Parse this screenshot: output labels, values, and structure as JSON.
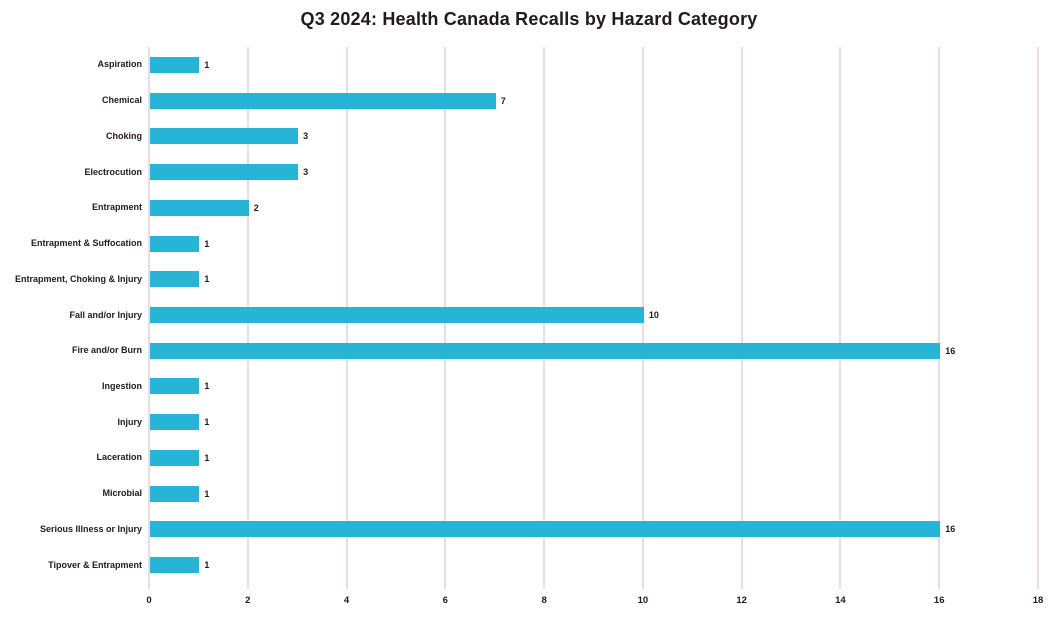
{
  "chart_data": {
    "type": "bar",
    "orientation": "horizontal",
    "title": "Q3 2024: Health Canada Recalls by Hazard Category",
    "categories": [
      "Aspiration",
      "Chemical",
      "Choking",
      "Electrocution",
      "Entrapment",
      "Entrapment & Suffocation",
      "Entrapment, Choking & Injury",
      "Fall and/or Injury",
      "Fire and/or Burn",
      "Ingestion",
      "Injury",
      "Laceration",
      "Microbial",
      "Serious Illness or Injury",
      "Tipover & Entrapment"
    ],
    "values": [
      1,
      7,
      3,
      3,
      2,
      1,
      1,
      10,
      16,
      1,
      1,
      1,
      1,
      16,
      1
    ],
    "data_labels_shown": true,
    "xlabel": "",
    "ylabel": "",
    "xlim": [
      0,
      18
    ],
    "x_ticks": [
      "0",
      "2",
      "4",
      "6",
      "8",
      "10",
      "12",
      "14",
      "16",
      "18"
    ],
    "legend": "none",
    "grid": "vertical",
    "colors": {
      "bar": "#27b5d7",
      "gridline": "#e9dde2",
      "text": "#241822",
      "background": "#ffffff"
    }
  }
}
